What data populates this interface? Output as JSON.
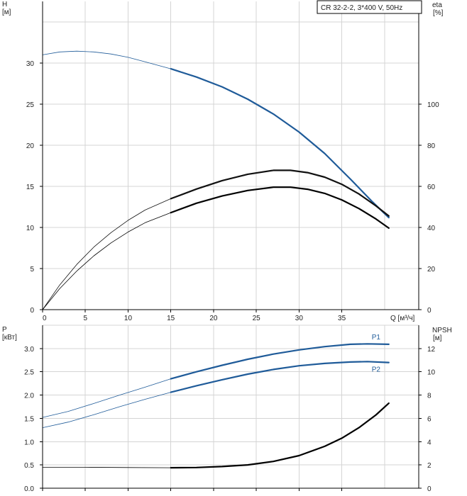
{
  "chart_data": [
    {
      "type": "line",
      "title": "CR 32-2-2, 3*400 V, 50Hz",
      "y_left_label": [
        "H",
        "[м]"
      ],
      "y_right_label": [
        "eta",
        "[%]"
      ],
      "x_axis_label": "Q [м³/ч]",
      "x_ticks": [
        "0",
        "5",
        "10",
        "15",
        "20",
        "25",
        "30",
        "35"
      ],
      "y_left_ticks": [
        "0",
        "5",
        "10",
        "15",
        "20",
        "25",
        "30"
      ],
      "y_right_ticks": [
        "0",
        "20",
        "40",
        "60",
        "80",
        "100"
      ],
      "xlim": [
        0,
        44
      ],
      "ylim_left": [
        0,
        37.5
      ],
      "ylim_right": [
        0,
        150
      ],
      "grid": true,
      "series": [
        {
          "axis": "left",
          "color": "#1f5b99",
          "thin_until_x": 15,
          "points": [
            [
              0,
              31.0
            ],
            [
              2,
              31.35
            ],
            [
              4,
              31.45
            ],
            [
              6,
              31.35
            ],
            [
              8,
              31.1
            ],
            [
              10,
              30.7
            ],
            [
              12,
              30.15
            ],
            [
              15,
              29.3
            ],
            [
              18,
              28.3
            ],
            [
              21,
              27.1
            ],
            [
              24,
              25.6
            ],
            [
              27,
              23.8
            ],
            [
              30,
              21.6
            ],
            [
              33,
              19.0
            ],
            [
              36,
              15.9
            ],
            [
              38.5,
              13.2
            ],
            [
              40.5,
              11.2
            ]
          ]
        },
        {
          "axis": "right",
          "color": "#111111",
          "thin_until_x": 15,
          "points": [
            [
              0,
              0
            ],
            [
              2,
              12
            ],
            [
              4,
              22
            ],
            [
              6,
              30.5
            ],
            [
              8,
              37.5
            ],
            [
              10,
              43.5
            ],
            [
              12,
              48.5
            ],
            [
              15,
              54.0
            ],
            [
              18,
              58.7
            ],
            [
              21,
              62.8
            ],
            [
              24,
              65.9
            ],
            [
              27,
              67.8
            ],
            [
              29,
              67.8
            ],
            [
              31,
              66.7
            ],
            [
              33,
              64.5
            ],
            [
              35,
              61.0
            ],
            [
              37,
              56.3
            ],
            [
              39,
              50.5
            ],
            [
              40.5,
              45.6
            ]
          ]
        },
        {
          "axis": "right",
          "color": "#000000",
          "thin_until_x": 15,
          "points": [
            [
              0,
              0
            ],
            [
              2,
              10.2
            ],
            [
              4,
              18.8
            ],
            [
              6,
              26.2
            ],
            [
              8,
              32.5
            ],
            [
              10,
              37.8
            ],
            [
              12,
              42.3
            ],
            [
              15,
              47.2
            ],
            [
              18,
              51.8
            ],
            [
              21,
              55.3
            ],
            [
              24,
              58.0
            ],
            [
              27,
              59.6
            ],
            [
              29,
              59.6
            ],
            [
              31,
              58.6
            ],
            [
              33,
              56.6
            ],
            [
              35,
              53.4
            ],
            [
              37,
              49.2
            ],
            [
              39,
              44.1
            ],
            [
              40.5,
              39.7
            ]
          ]
        }
      ]
    },
    {
      "type": "line",
      "y_left_label": [
        "P",
        "[кВт]"
      ],
      "y_right_label": [
        "NPSH",
        "[м]"
      ],
      "x_axis_label": "",
      "y_left_ticks": [
        "0.0",
        "0.5",
        "1.0",
        "1.5",
        "2.0",
        "2.5",
        "3.0"
      ],
      "y_right_ticks": [
        "0",
        "2",
        "4",
        "6",
        "8",
        "10",
        "12"
      ],
      "xlim": [
        0,
        44
      ],
      "ylim_left": [
        0,
        3.5
      ],
      "ylim_right": [
        0,
        14
      ],
      "grid": true,
      "series": [
        {
          "name": "P1",
          "axis": "left",
          "color": "#1f5b99",
          "thin_until_x": 15,
          "points": [
            [
              0,
              1.52
            ],
            [
              3,
              1.65
            ],
            [
              6,
              1.82
            ],
            [
              9,
              2.0
            ],
            [
              12,
              2.17
            ],
            [
              15,
              2.35
            ],
            [
              18,
              2.5
            ],
            [
              21,
              2.64
            ],
            [
              24,
              2.77
            ],
            [
              27,
              2.88
            ],
            [
              30,
              2.97
            ],
            [
              33,
              3.04
            ],
            [
              36,
              3.09
            ],
            [
              38,
              3.1
            ],
            [
              40.5,
              3.09
            ]
          ]
        },
        {
          "name": "P2",
          "axis": "left",
          "color": "#1f5b99",
          "thin_until_x": 15,
          "points": [
            [
              0,
              1.3
            ],
            [
              3,
              1.42
            ],
            [
              6,
              1.58
            ],
            [
              9,
              1.75
            ],
            [
              12,
              1.91
            ],
            [
              15,
              2.06
            ],
            [
              18,
              2.2
            ],
            [
              21,
              2.33
            ],
            [
              24,
              2.45
            ],
            [
              27,
              2.55
            ],
            [
              30,
              2.63
            ],
            [
              33,
              2.68
            ],
            [
              36,
              2.71
            ],
            [
              38,
              2.72
            ],
            [
              40.5,
              2.7
            ]
          ]
        },
        {
          "axis": "right",
          "color": "#000000",
          "thin_until_x": 15,
          "points": [
            [
              0,
              1.8
            ],
            [
              5,
              1.8
            ],
            [
              10,
              1.78
            ],
            [
              15,
              1.76
            ],
            [
              18,
              1.78
            ],
            [
              21,
              1.86
            ],
            [
              24,
              2.0
            ],
            [
              27,
              2.3
            ],
            [
              30,
              2.8
            ],
            [
              33,
              3.6
            ],
            [
              35,
              4.3
            ],
            [
              37,
              5.2
            ],
            [
              39,
              6.3
            ],
            [
              40.5,
              7.3
            ]
          ]
        }
      ]
    }
  ]
}
